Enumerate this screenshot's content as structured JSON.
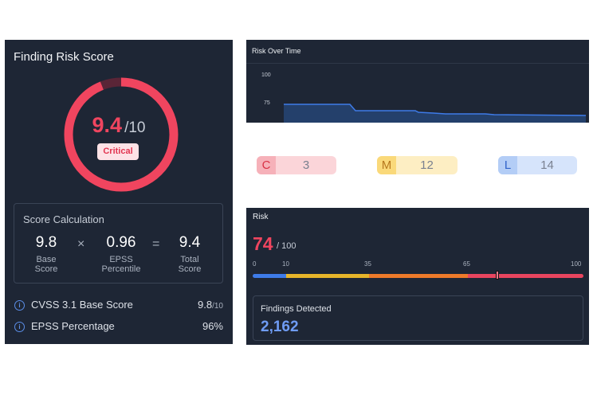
{
  "score_card": {
    "title": "Finding Risk Score",
    "score": "9.4",
    "score_max": "/10",
    "score_fraction": 0.94,
    "severity_badge": "Critical",
    "calculation": {
      "title": "Score Calculation",
      "base": {
        "value": "9.8",
        "label": "Base Score"
      },
      "multiply": "×",
      "epss": {
        "value": "0.96",
        "label": "EPSS Percentile"
      },
      "equals": "=",
      "total": {
        "value": "9.4",
        "label": "Total Score"
      }
    },
    "metrics": [
      {
        "label": "CVSS 3.1 Base Score",
        "value": "9.8",
        "suffix": "/10",
        "icon": "info-icon"
      },
      {
        "label": "EPSS Percentage",
        "value": "96%",
        "suffix": "",
        "icon": "info-icon"
      }
    ]
  },
  "risk_over_time": {
    "title": "Risk Over Time",
    "tick_100": "100",
    "tick_75": "75"
  },
  "severity_counts": [
    {
      "key": "C",
      "count": "3"
    },
    {
      "key": "M",
      "count": "12"
    },
    {
      "key": "L",
      "count": "14"
    }
  ],
  "risk": {
    "title": "Risk",
    "value": "74",
    "max": "/ 100",
    "level": 74,
    "scale_ticks": [
      "0",
      "10",
      "35",
      "65",
      "100"
    ],
    "findings_label": "Findings Detected",
    "findings_value": "2,162"
  },
  "colors": {
    "critical": "#f0455f",
    "chart_line": "#3e7be8",
    "chart_fill": "#24406b",
    "bar_low": "#3e7be8",
    "bar_medium": "#e7b52a",
    "bar_high": "#ee7a2a",
    "bar_critical": "#e8455f",
    "findings_value": "#6f9cf5"
  }
}
